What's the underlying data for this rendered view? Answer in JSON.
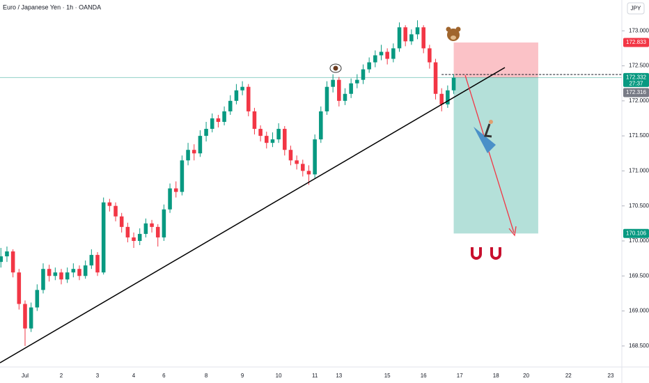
{
  "chart_data": {
    "type": "candlestick",
    "title": "Euro / Japanese Yen · 1h · OANDA",
    "currency": "JPY",
    "categories": [
      null,
      null,
      null,
      null,
      "Jul",
      null,
      null,
      null,
      null,
      null,
      "2",
      null,
      null,
      null,
      null,
      null,
      "3",
      null,
      null,
      null,
      null,
      null,
      "4",
      null,
      null,
      null,
      null,
      "6",
      null,
      null,
      null,
      null,
      null,
      null,
      "8",
      null,
      null,
      null,
      null,
      null,
      "9",
      null,
      null,
      null,
      null,
      null,
      "10",
      null,
      null,
      null,
      null,
      null,
      "11",
      null,
      null,
      null,
      "13",
      null,
      null,
      null,
      null,
      null,
      null,
      null,
      "15",
      null,
      null,
      null,
      null,
      null,
      "16",
      null,
      null,
      null,
      null,
      null,
      "17",
      null,
      null,
      null,
      null,
      null,
      "18",
      null,
      null,
      null,
      null,
      "20",
      null,
      null,
      null,
      null,
      null,
      null,
      "22",
      null,
      null,
      null,
      null,
      null,
      null,
      "23"
    ],
    "open": [
      169.7,
      169.78,
      169.85,
      169.55,
      169.1,
      168.75,
      169.05,
      169.3,
      169.6,
      169.5,
      169.55,
      169.45,
      169.55,
      169.6,
      169.5,
      169.65,
      169.8,
      169.55,
      170.55,
      170.5,
      170.35,
      170.2,
      170.05,
      170.0,
      170.1,
      170.25,
      170.2,
      170.05,
      170.45,
      170.75,
      170.7,
      171.15,
      171.3,
      171.25,
      171.5,
      171.6,
      171.75,
      171.7,
      171.85,
      172.0,
      172.15,
      172.2,
      171.85,
      171.6,
      171.5,
      171.4,
      171.45,
      171.6,
      171.3,
      171.15,
      171.1,
      171.0,
      170.95,
      171.45,
      171.85,
      172.2,
      172.3,
      172.0,
      172.1,
      172.25,
      172.3,
      172.45,
      172.55,
      172.65,
      172.7,
      172.6,
      172.75,
      173.05,
      172.85,
      172.95,
      173.05,
      172.75,
      172.55,
      172.1,
      171.95,
      172.15,
      null,
      null,
      null,
      null,
      null,
      null,
      null,
      null,
      null,
      null,
      null,
      null,
      null,
      null,
      null,
      null,
      null,
      null,
      null,
      null,
      null,
      null,
      null,
      null,
      null,
      null
    ],
    "high": [
      169.9,
      169.92,
      169.88,
      169.6,
      169.15,
      169.12,
      169.38,
      169.68,
      169.66,
      169.62,
      169.6,
      169.62,
      169.68,
      169.65,
      169.72,
      169.88,
      169.84,
      170.62,
      170.6,
      170.55,
      170.4,
      170.26,
      170.12,
      170.18,
      170.32,
      170.3,
      170.24,
      170.52,
      170.82,
      170.85,
      171.22,
      171.4,
      171.38,
      171.58,
      171.7,
      171.82,
      171.8,
      171.92,
      172.08,
      172.24,
      172.28,
      172.24,
      171.9,
      171.65,
      171.56,
      171.55,
      171.68,
      171.64,
      171.36,
      171.22,
      171.16,
      171.08,
      171.52,
      171.92,
      172.28,
      172.38,
      172.34,
      172.18,
      172.32,
      172.38,
      172.52,
      172.62,
      172.72,
      172.8,
      172.75,
      172.82,
      173.12,
      173.08,
      173.02,
      173.15,
      173.08,
      172.8,
      172.6,
      172.18,
      172.22,
      172.38,
      null,
      null,
      null,
      null,
      null,
      null,
      null,
      null,
      null,
      null,
      null,
      null,
      null,
      null,
      null,
      null,
      null,
      null,
      null,
      null,
      null,
      null,
      null,
      null,
      null,
      null
    ],
    "low": [
      169.62,
      169.7,
      169.48,
      169.02,
      168.5,
      168.7,
      169.0,
      169.25,
      169.42,
      169.44,
      169.38,
      169.4,
      169.48,
      169.44,
      169.46,
      169.6,
      169.5,
      169.52,
      170.42,
      170.28,
      170.12,
      169.98,
      169.9,
      169.94,
      170.05,
      170.12,
      169.92,
      170.0,
      170.4,
      170.62,
      170.65,
      171.08,
      171.15,
      171.2,
      171.42,
      171.55,
      171.62,
      171.65,
      171.8,
      171.95,
      172.08,
      171.78,
      171.52,
      171.42,
      171.32,
      171.34,
      171.4,
      171.22,
      171.08,
      171.02,
      170.92,
      170.8,
      170.9,
      171.4,
      171.8,
      172.12,
      171.92,
      171.94,
      172.04,
      172.18,
      172.24,
      172.4,
      172.48,
      172.58,
      172.52,
      172.55,
      172.7,
      172.78,
      172.8,
      172.88,
      172.68,
      172.46,
      172.02,
      171.85,
      171.9,
      172.1,
      null,
      null,
      null,
      null,
      null,
      null,
      null,
      null,
      null,
      null,
      null,
      null,
      null,
      null,
      null,
      null,
      null,
      null,
      null,
      null,
      null,
      null,
      null,
      null,
      null,
      null
    ],
    "close": [
      169.78,
      169.85,
      169.55,
      169.1,
      168.75,
      169.05,
      169.3,
      169.6,
      169.5,
      169.55,
      169.45,
      169.55,
      169.6,
      169.5,
      169.65,
      169.8,
      169.55,
      170.55,
      170.5,
      170.35,
      170.2,
      170.05,
      170.0,
      170.1,
      170.25,
      170.2,
      170.05,
      170.45,
      170.75,
      170.7,
      171.15,
      171.3,
      171.25,
      171.5,
      171.6,
      171.75,
      171.7,
      171.85,
      172.0,
      172.15,
      172.2,
      171.85,
      171.6,
      171.5,
      171.4,
      171.45,
      171.6,
      171.3,
      171.15,
      171.1,
      171.0,
      170.95,
      171.45,
      171.85,
      172.2,
      172.3,
      172.0,
      172.1,
      172.25,
      172.3,
      172.45,
      172.55,
      172.65,
      172.7,
      172.6,
      172.75,
      173.05,
      172.85,
      172.95,
      173.05,
      172.75,
      172.55,
      172.1,
      171.95,
      172.15,
      172.33,
      null,
      null,
      null,
      null,
      null,
      null,
      null,
      null,
      null,
      null,
      null,
      null,
      null,
      null,
      null,
      null,
      null,
      null,
      null,
      null,
      null,
      null,
      null,
      null,
      null,
      null
    ],
    "up_color": "#089981",
    "down_color": "#f23645",
    "ylim": [
      168.2,
      173.44
    ],
    "yticks": [
      {
        "value": 168.5,
        "label": "168.500"
      },
      {
        "value": 169,
        "label": "169.000"
      },
      {
        "value": 169.5,
        "label": "169.500"
      },
      {
        "value": 170,
        "label": "170.000"
      },
      {
        "value": 170.5,
        "label": "170.500"
      },
      {
        "value": 171,
        "label": "171.000"
      },
      {
        "value": 171.5,
        "label": "171.500"
      },
      {
        "value": 172,
        "label": "172.000"
      },
      {
        "value": 172.5,
        "label": "172.500"
      },
      {
        "value": 173,
        "label": "173.000"
      }
    ],
    "grid": false,
    "last_price": 172.332,
    "countdown": "27:37",
    "bid_price": 172.316,
    "stop_loss": 172.833,
    "take_profit": 170.106
  }
}
